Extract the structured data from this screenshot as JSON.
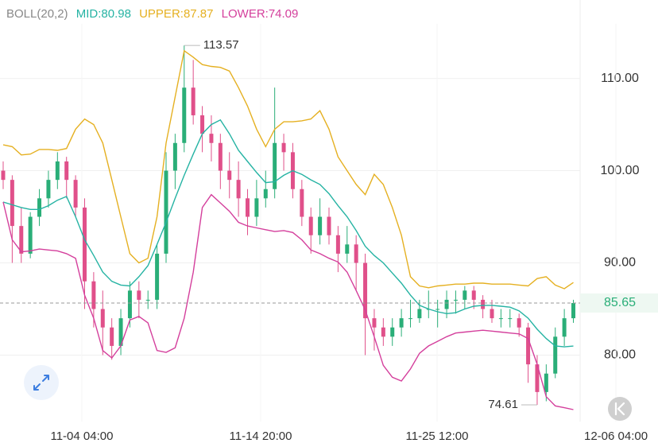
{
  "chart_data": {
    "type": "candlestick",
    "indicator": "BOLL(20,2)",
    "up_color": "#2aae78",
    "down_color": "#e0508a",
    "open": [
      100,
      99,
      94,
      91,
      95,
      97,
      99,
      101,
      99,
      96,
      88,
      85,
      83,
      81,
      84,
      87,
      86,
      86,
      91,
      100,
      103,
      109,
      106,
      104,
      103,
      100,
      99,
      97,
      95,
      97,
      98,
      103,
      102,
      98,
      95,
      93,
      95,
      93,
      91,
      92,
      90,
      84,
      83,
      82,
      83,
      84,
      84,
      85,
      85,
      85,
      86,
      86,
      87,
      86,
      85,
      84,
      84,
      84,
      83,
      79,
      76,
      78,
      82,
      84
    ],
    "high": [
      101,
      99.5,
      96,
      95.5,
      98,
      100,
      102,
      101.5,
      99.5,
      97,
      89,
      87,
      84,
      85,
      88,
      88,
      87,
      92,
      102,
      104,
      113.57,
      112,
      107,
      106,
      104,
      102,
      101,
      98,
      99,
      100,
      109,
      104,
      103,
      99,
      96,
      97,
      96,
      94,
      94,
      93,
      91,
      85,
      84,
      84,
      85,
      86,
      86,
      87,
      86,
      87,
      87,
      87.5,
      87.5,
      86.5,
      86,
      85,
      85,
      84.5,
      83.5,
      80,
      79,
      83,
      85,
      86
    ],
    "low": [
      98,
      90,
      90,
      90.5,
      94,
      96,
      98,
      97,
      95,
      85,
      83,
      80,
      79.5,
      80,
      83,
      84,
      85,
      85,
      90,
      98,
      102,
      105,
      102,
      101,
      98,
      97,
      95,
      93,
      94,
      96,
      97,
      100,
      97,
      94,
      91,
      92,
      92,
      89,
      90,
      87,
      80,
      80.5,
      81,
      81,
      82,
      83,
      83.5,
      84,
      83,
      84,
      84.5,
      85,
      85,
      84,
      83.5,
      83,
      83,
      82,
      77,
      74.61,
      75,
      77.5,
      81,
      83.5
    ],
    "close": [
      99,
      94,
      91,
      95,
      97,
      99,
      101,
      99,
      96,
      88,
      85,
      83,
      81,
      84,
      87,
      86,
      86,
      91,
      100,
      103,
      109,
      106,
      104,
      103,
      100,
      99,
      97,
      95,
      97,
      98,
      103,
      102,
      98,
      95,
      93,
      95,
      93,
      91,
      92,
      90,
      84,
      83,
      82,
      83,
      84,
      84,
      85,
      85,
      85,
      86,
      86,
      87,
      86,
      85,
      84,
      84,
      84,
      83,
      79,
      76,
      78,
      82,
      84,
      85.65
    ],
    "series": [
      {
        "name": "MID:80.98",
        "color": "#25b3a3",
        "values": [
          96.6,
          96.3,
          96,
          95.8,
          95.8,
          96.2,
          96.8,
          97.2,
          95,
          92.5,
          90.8,
          89,
          88,
          87.6,
          87.5,
          88.5,
          89.7,
          92,
          94.4,
          97,
          99.5,
          101.8,
          104,
          105,
          105.5,
          104,
          102.2,
          101,
          99.8,
          98.7,
          98.8,
          99.5,
          100,
          99.6,
          99,
          98.5,
          97.5,
          96.2,
          95,
          93.5,
          91.8,
          90.8,
          90,
          88.9,
          87.8,
          86.5,
          85.4,
          85,
          84.7,
          84.5,
          84.6,
          85,
          85.3,
          85.4,
          85.4,
          85.3,
          85.2,
          84.8,
          84,
          82.8,
          81.8,
          81,
          80.9,
          80.98
        ]
      },
      {
        "name": "UPPER:87.87",
        "color": "#e5b021",
        "values": [
          102.8,
          102.6,
          101.7,
          101.8,
          102.3,
          102.3,
          102.2,
          102.4,
          104.5,
          105.6,
          105,
          103,
          99,
          95,
          91,
          90,
          90.5,
          95,
          103,
          108,
          113,
          112.3,
          111.5,
          111.3,
          111.2,
          110.8,
          109,
          107,
          104.5,
          102.6,
          104.5,
          105.3,
          105.3,
          105.4,
          105.6,
          106.5,
          104.5,
          101.5,
          100,
          98.5,
          97.4,
          99.6,
          98.5,
          96,
          93,
          88.5,
          87.5,
          87.3,
          87.5,
          87.6,
          87.7,
          87.7,
          87.8,
          87.8,
          87.7,
          87.7,
          87.7,
          87.6,
          87.5,
          88.3,
          88.5,
          87.6,
          87.2,
          87.87
        ]
      },
      {
        "name": "LOWER:74.09",
        "color": "#d43f9c",
        "values": [
          96.6,
          92.5,
          91.2,
          91.3,
          91.5,
          91.4,
          91.3,
          91,
          90.5,
          86.5,
          84,
          80.5,
          79.7,
          81,
          83.8,
          84.2,
          83.5,
          80.5,
          80.3,
          80.8,
          84,
          89,
          96,
          97.4,
          96.5,
          95.6,
          94.4,
          94,
          93.8,
          93.6,
          93.4,
          93.5,
          93.3,
          92.5,
          91.4,
          91,
          90.5,
          90.1,
          89,
          87,
          84.9,
          82,
          78.9,
          77.6,
          77.2,
          78.5,
          80.2,
          81,
          81.5,
          82,
          82.4,
          82.5,
          82.6,
          82.7,
          82.6,
          82.5,
          82.4,
          82.3,
          81.8,
          79,
          75.5,
          74.5,
          74.3,
          74.09
        ]
      }
    ],
    "last_price": 85.65,
    "ylim": [
      72.8,
      118.5
    ],
    "yticks": [
      {
        "value": 80,
        "label": "80.00"
      },
      {
        "value": 90,
        "label": "90.00"
      },
      {
        "value": 100,
        "label": "100.00"
      },
      {
        "value": 110,
        "label": "110.00"
      }
    ],
    "xlim": [
      -0.35,
      72.35
    ],
    "xticks": [
      {
        "value": 8.69,
        "label": "11-04 04:00"
      },
      {
        "value": 28.45,
        "label": "11-14 20:00"
      },
      {
        "value": 47.94,
        "label": "11-25 12:00"
      },
      {
        "value": 67.7,
        "label": "12-06 04:00"
      }
    ],
    "grid": true
  }
}
